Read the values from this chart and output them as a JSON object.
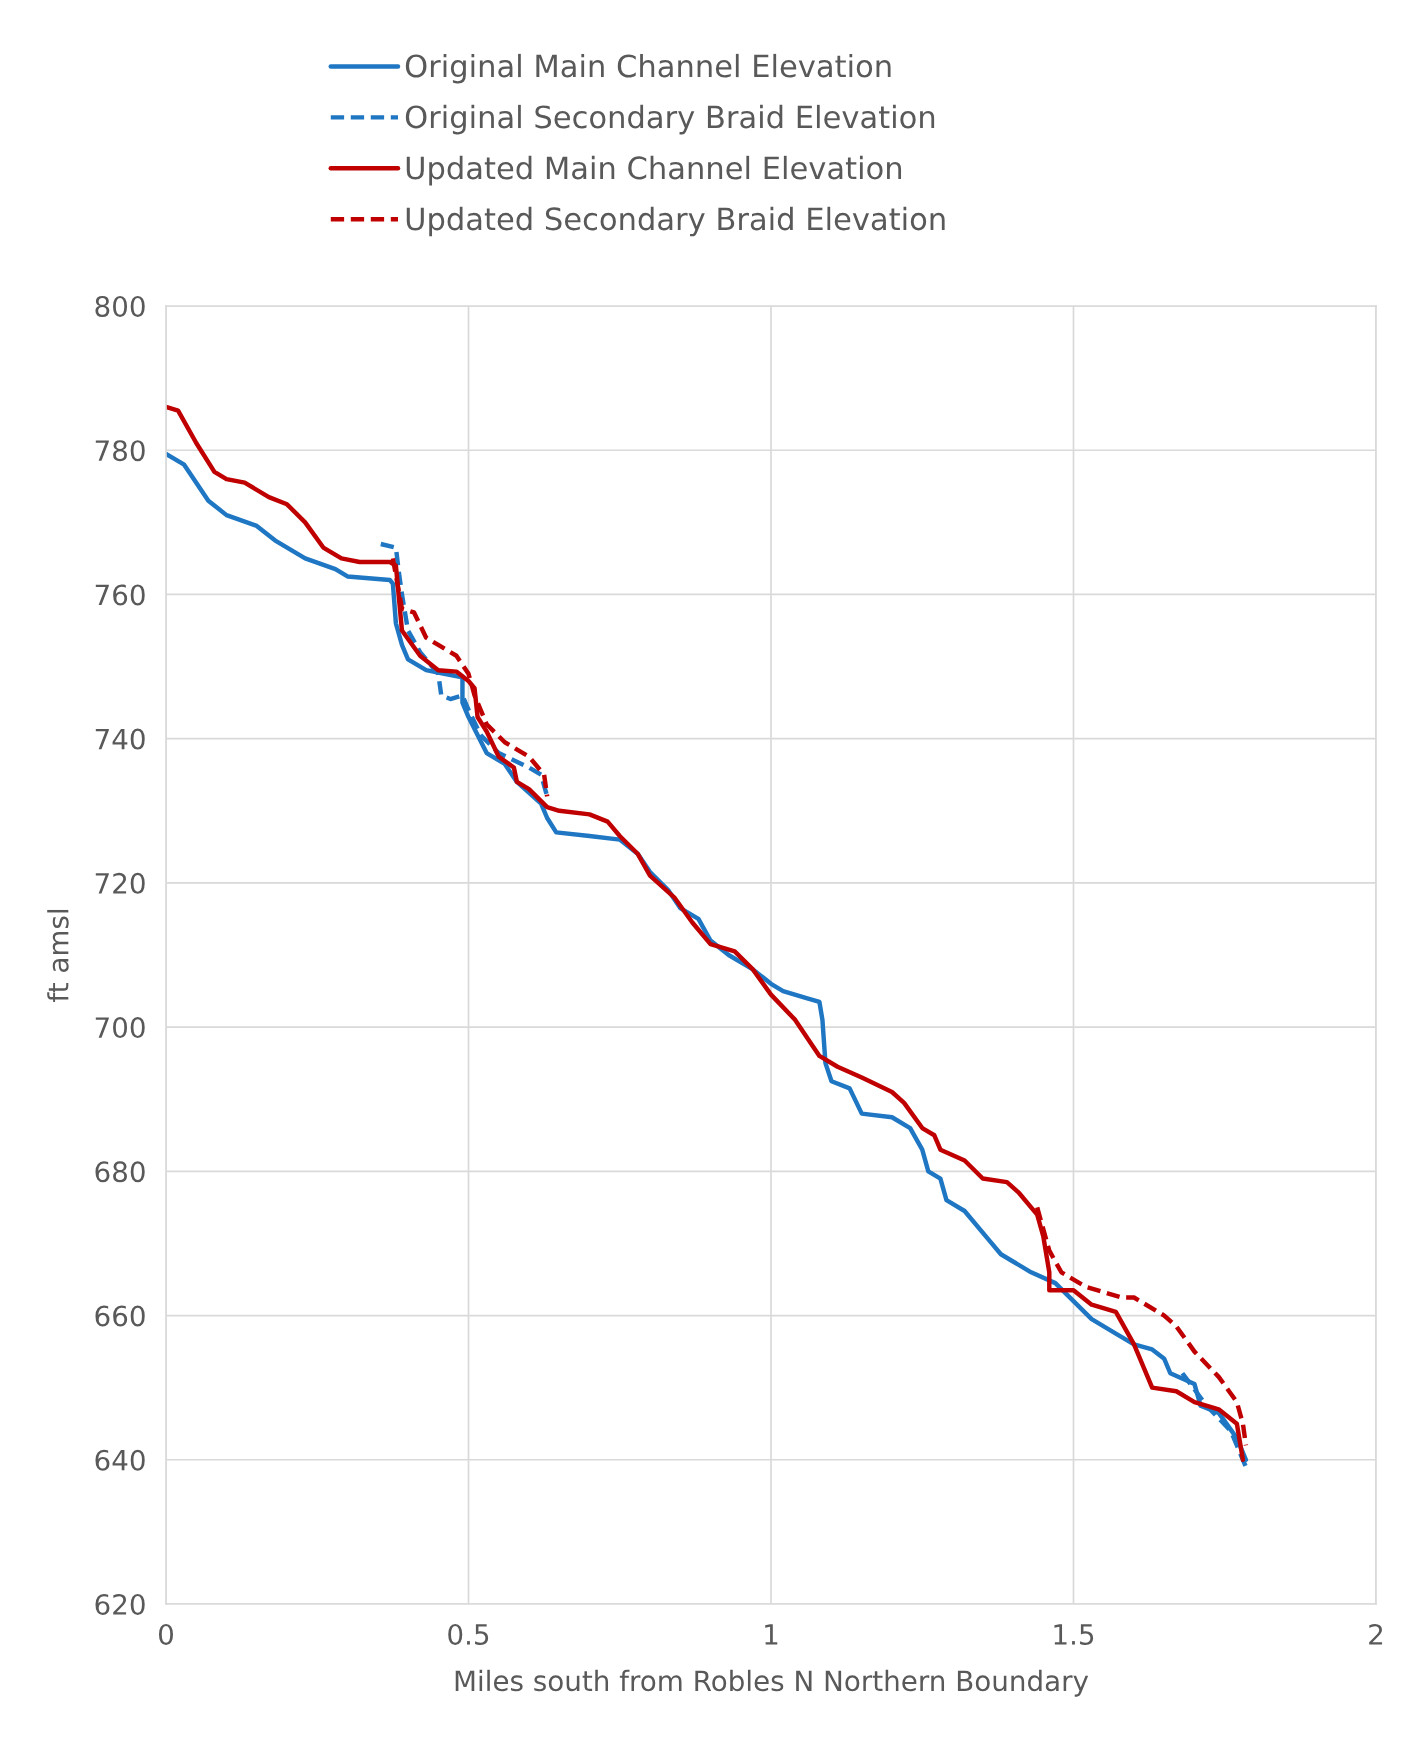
{
  "chart_data": {
    "type": "line",
    "xlabel": "Miles south from Robles N Northern Boundary",
    "ylabel": "ft amsl",
    "xlim": [
      0,
      2
    ],
    "xticks": [
      0,
      0.5,
      1,
      1.5,
      2
    ],
    "ylim": [
      620,
      800
    ],
    "yticks": [
      620,
      640,
      660,
      680,
      700,
      720,
      740,
      760,
      780,
      800
    ],
    "grid": true,
    "legend": "top",
    "marker": "none",
    "series": [
      {
        "name": "Original Main Channel Elevation",
        "color": "#1f77c4",
        "line_style": "solid",
        "x": [
          0,
          0.03,
          0.07,
          0.1,
          0.15,
          0.18,
          0.23,
          0.28,
          0.3,
          0.37,
          0.375,
          0.38,
          0.39,
          0.4,
          0.43,
          0.46,
          0.49,
          0.49,
          0.5,
          0.53,
          0.56,
          0.58,
          0.62,
          0.63,
          0.645,
          0.7,
          0.75,
          0.78,
          0.8,
          0.83,
          0.85,
          0.88,
          0.9,
          0.93,
          0.97,
          1.0,
          1.02,
          1.06,
          1.08,
          1.085,
          1.09,
          1.1,
          1.13,
          1.15,
          1.2,
          1.23,
          1.25,
          1.26,
          1.28,
          1.29,
          1.32,
          1.36,
          1.38,
          1.4,
          1.43,
          1.47,
          1.5,
          1.53,
          1.57,
          1.6,
          1.63,
          1.65,
          1.66,
          1.7,
          1.71,
          1.74,
          1.77,
          1.785
        ],
        "values": [
          779.5,
          778,
          773,
          771,
          769.5,
          767.5,
          765,
          763.5,
          762.5,
          762,
          761.5,
          756,
          753,
          751,
          749.5,
          749,
          748.5,
          745,
          743,
          738,
          736.5,
          734,
          731,
          729,
          727,
          726.5,
          726,
          724,
          721.5,
          719,
          716.5,
          715,
          712,
          710,
          708,
          706,
          705,
          704,
          703.5,
          701,
          695,
          692.5,
          691.5,
          688,
          687.5,
          686,
          683,
          680,
          679,
          676,
          674.5,
          670.5,
          668.5,
          667.5,
          666,
          664.5,
          662,
          659.5,
          657.5,
          656,
          655.3,
          654,
          652,
          650.5,
          647.5,
          646.5,
          643,
          640
        ]
      },
      {
        "name": "Original Secondary Braid Elevation",
        "color": "#1f77c4",
        "line_style": "dashed",
        "x": [
          0.355,
          0.38,
          0.385,
          0.39,
          0.4,
          0.42,
          0.45,
          0.455,
          0.47,
          0.49,
          0.5,
          0.52,
          0.55,
          0.6,
          0.62,
          0.63,
          1.0,
          1.68,
          1.72,
          1.76,
          1.785
        ],
        "values": [
          767,
          766.5,
          763,
          760,
          755,
          752,
          749,
          746,
          745.5,
          746,
          744,
          740.5,
          738,
          736,
          735,
          732,
          null,
          652,
          647.5,
          644,
          639
        ]
      },
      {
        "name": "Updated Main Channel Elevation",
        "color": "#c00000",
        "line_style": "solid",
        "x": [
          0,
          0.02,
          0.05,
          0.08,
          0.1,
          0.13,
          0.17,
          0.2,
          0.23,
          0.26,
          0.29,
          0.32,
          0.37,
          0.38,
          0.39,
          0.42,
          0.45,
          0.48,
          0.5,
          0.51,
          0.515,
          0.53,
          0.55,
          0.575,
          0.58,
          0.6,
          0.63,
          0.65,
          0.7,
          0.73,
          0.75,
          0.78,
          0.8,
          0.84,
          0.87,
          0.9,
          0.94,
          0.97,
          1.0,
          1.04,
          1.08,
          1.11,
          1.15,
          1.2,
          1.22,
          1.25,
          1.27,
          1.28,
          1.32,
          1.35,
          1.39,
          1.41,
          1.44,
          1.45,
          1.46,
          1.46,
          1.5,
          1.53,
          1.57,
          1.6,
          1.63,
          1.67,
          1.7,
          1.74,
          1.77,
          1.78
        ],
        "values": [
          786,
          785.5,
          781,
          777,
          776,
          775.5,
          773.5,
          772.5,
          770,
          766.5,
          765,
          764.5,
          764.5,
          764,
          755,
          751.5,
          749.5,
          749.3,
          748,
          747,
          743,
          741,
          737.5,
          736,
          734,
          733,
          730.5,
          730,
          729.5,
          728.5,
          726.5,
          724,
          721,
          718,
          714.5,
          711.5,
          710.5,
          708,
          704.5,
          701,
          696,
          694.5,
          693,
          691,
          689.5,
          686,
          685,
          683,
          681.5,
          679,
          678.5,
          677,
          674,
          671,
          666,
          663.5,
          663.5,
          661.5,
          660.5,
          656,
          650,
          649.5,
          648,
          647,
          645,
          640
        ]
      },
      {
        "name": "Updated Secondary Braid Elevation",
        "color": "#c00000",
        "line_style": "dashed",
        "x": [
          0.375,
          0.39,
          0.41,
          0.43,
          0.45,
          0.48,
          0.5,
          0.51,
          0.53,
          0.56,
          0.6,
          0.625,
          0.63,
          1.0,
          1.44,
          1.46,
          1.48,
          1.52,
          1.58,
          1.6,
          1.65,
          1.67,
          1.7,
          1.74,
          1.77,
          1.78,
          1.785
        ],
        "values": [
          765,
          758,
          757.5,
          754,
          753,
          751.5,
          749,
          746,
          742,
          739.5,
          737.5,
          735,
          732,
          null,
          675,
          669,
          666,
          664,
          662.5,
          662.5,
          660,
          658.5,
          655,
          651.5,
          648,
          645,
          642
        ]
      }
    ]
  }
}
